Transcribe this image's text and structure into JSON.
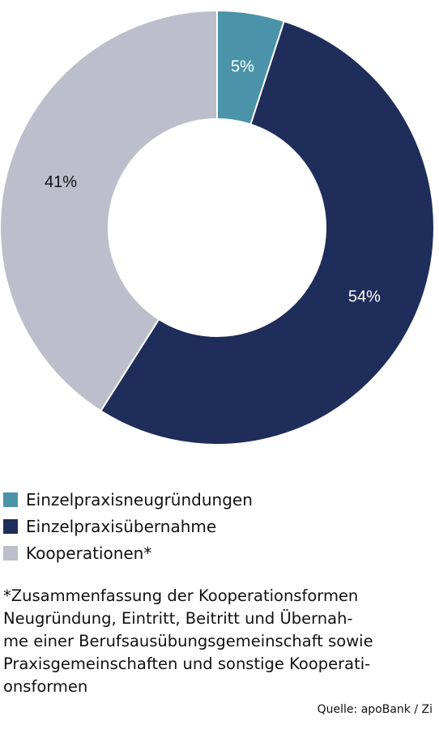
{
  "chart_data": {
    "type": "pie",
    "variant": "donut",
    "categories": [
      "Einzelpraxisneugründungen",
      "Einzelpraxisübernahme",
      "Kooperationen*"
    ],
    "values": [
      5,
      54,
      41
    ],
    "labels": [
      "5%",
      "54%",
      "41%"
    ],
    "colors": [
      "#4a93a8",
      "#1f2d5a",
      "#bcbfcb"
    ],
    "label_colors": [
      "#ffffff",
      "#ffffff",
      "#111111"
    ],
    "legend_placement": "bottom"
  },
  "legend": [
    {
      "label": "Einzelpraxisneugründungen",
      "color": "#4a93a8"
    },
    {
      "label": "Einzelpraxisübernahme",
      "color": "#1f2d5a"
    },
    {
      "label": "Kooperationen*",
      "color": "#bcbfcb"
    }
  ],
  "footnote": {
    "lines": [
      "*Zusammenfassung der Kooperationsformen",
      "Neugründung, Eintritt, Beitritt und Übernah-",
      "me einer Berufsausübungsgemeinschaft sowie",
      "Praxisgemeinschaften und sonstige Kooperati-",
      "onsformen"
    ]
  },
  "source": "Quelle: apoBank / Zi"
}
